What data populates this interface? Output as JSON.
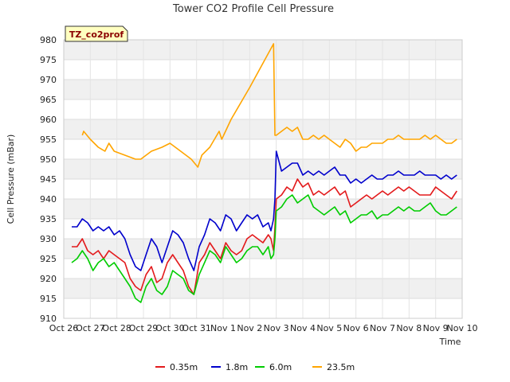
{
  "chart_data": {
    "type": "line",
    "title": "Tower CO2 Profile Cell Pressure",
    "xlabel": "Time",
    "ylabel": "Cell Pressure (mBar)",
    "station_badge": "TZ_co2prof",
    "ylim": [
      910,
      980
    ],
    "yticks": [
      910,
      915,
      920,
      925,
      930,
      935,
      940,
      945,
      950,
      955,
      960,
      965,
      970,
      975,
      980
    ],
    "xlim": [
      0,
      15
    ],
    "xtick_labels": [
      "Oct 26",
      "Oct 27",
      "Oct 28",
      "Oct 29",
      "Oct 30",
      "Oct 31",
      "Nov 1",
      "Nov 2",
      "Nov 3",
      "Nov 4",
      "Nov 5",
      "Nov 6",
      "Nov 7",
      "Nov 8",
      "Nov 9",
      "Nov 10"
    ],
    "x_unit": "days since Oct 26",
    "grid": true,
    "legend_position": "bottom-center",
    "series": [
      {
        "name": "0.35m",
        "color": "#e31a1c",
        "x": [
          0.3,
          0.5,
          0.7,
          0.9,
          1.1,
          1.3,
          1.5,
          1.7,
          1.9,
          2.1,
          2.3,
          2.5,
          2.7,
          2.9,
          3.1,
          3.3,
          3.5,
          3.7,
          3.9,
          4.1,
          4.3,
          4.5,
          4.7,
          4.9,
          5.1,
          5.3,
          5.5,
          5.7,
          5.9,
          6.1,
          6.3,
          6.5,
          6.7,
          6.9,
          7.1,
          7.3,
          7.5,
          7.7,
          7.8,
          7.9,
          7.95,
          8.0,
          8.2,
          8.4,
          8.6,
          8.8,
          9.0,
          9.2,
          9.4,
          9.6,
          9.8,
          10.0,
          10.2,
          10.4,
          10.6,
          10.8,
          11.0,
          11.2,
          11.4,
          11.6,
          11.8,
          12.0,
          12.2,
          12.4,
          12.6,
          12.8,
          13.0,
          13.2,
          13.4,
          13.6,
          13.8,
          14.0,
          14.2,
          14.4,
          14.6,
          14.8
        ],
        "values": [
          928,
          928,
          930,
          927,
          926,
          927,
          925,
          927,
          926,
          925,
          924,
          920,
          918,
          917,
          921,
          923,
          919,
          920,
          924,
          926,
          924,
          922,
          918,
          916,
          924,
          926,
          929,
          927,
          925,
          929,
          927,
          926,
          927,
          930,
          931,
          930,
          929,
          931,
          930,
          927,
          933,
          940,
          941,
          943,
          942,
          945,
          943,
          944,
          941,
          942,
          941,
          942,
          943,
          941,
          942,
          938,
          939,
          940,
          941,
          940,
          941,
          942,
          941,
          942,
          943,
          942,
          943,
          942,
          941,
          941,
          941,
          943,
          942,
          941,
          940,
          942
        ]
      },
      {
        "name": "1.8m",
        "color": "#0000cc",
        "x": [
          0.3,
          0.5,
          0.7,
          0.9,
          1.1,
          1.3,
          1.5,
          1.7,
          1.9,
          2.1,
          2.3,
          2.5,
          2.7,
          2.9,
          3.1,
          3.3,
          3.5,
          3.7,
          3.9,
          4.1,
          4.3,
          4.5,
          4.7,
          4.9,
          5.1,
          5.3,
          5.5,
          5.7,
          5.9,
          6.1,
          6.3,
          6.5,
          6.7,
          6.9,
          7.1,
          7.3,
          7.5,
          7.7,
          7.8,
          7.9,
          7.95,
          8.0,
          8.2,
          8.4,
          8.6,
          8.8,
          9.0,
          9.2,
          9.4,
          9.6,
          9.8,
          10.0,
          10.2,
          10.4,
          10.6,
          10.8,
          11.0,
          11.2,
          11.4,
          11.6,
          11.8,
          12.0,
          12.2,
          12.4,
          12.6,
          12.8,
          13.0,
          13.2,
          13.4,
          13.6,
          13.8,
          14.0,
          14.2,
          14.4,
          14.6,
          14.8
        ],
        "values": [
          933,
          933,
          935,
          934,
          932,
          933,
          932,
          933,
          931,
          932,
          930,
          926,
          923,
          922,
          926,
          930,
          928,
          924,
          928,
          932,
          931,
          929,
          925,
          922,
          928,
          931,
          935,
          934,
          932,
          936,
          935,
          932,
          934,
          936,
          935,
          936,
          933,
          934,
          932,
          935,
          940,
          952,
          947,
          948,
          949,
          949,
          946,
          947,
          946,
          947,
          946,
          947,
          948,
          946,
          946,
          944,
          945,
          944,
          945,
          946,
          945,
          945,
          946,
          946,
          947,
          946,
          946,
          946,
          947,
          946,
          946,
          946,
          945,
          946,
          945,
          946
        ]
      },
      {
        "name": "6.0m",
        "color": "#00cc00",
        "x": [
          0.3,
          0.5,
          0.7,
          0.9,
          1.1,
          1.3,
          1.5,
          1.7,
          1.9,
          2.1,
          2.3,
          2.5,
          2.7,
          2.9,
          3.1,
          3.3,
          3.5,
          3.7,
          3.9,
          4.1,
          4.3,
          4.5,
          4.7,
          4.9,
          5.1,
          5.3,
          5.5,
          5.7,
          5.9,
          6.1,
          6.3,
          6.5,
          6.7,
          6.9,
          7.1,
          7.3,
          7.5,
          7.7,
          7.8,
          7.9,
          7.95,
          8.0,
          8.2,
          8.4,
          8.6,
          8.8,
          9.0,
          9.2,
          9.4,
          9.6,
          9.8,
          10.0,
          10.2,
          10.4,
          10.6,
          10.8,
          11.0,
          11.2,
          11.4,
          11.6,
          11.8,
          12.0,
          12.2,
          12.4,
          12.6,
          12.8,
          13.0,
          13.2,
          13.4,
          13.6,
          13.8,
          14.0,
          14.2,
          14.4,
          14.6,
          14.8
        ],
        "values": [
          924,
          925,
          927,
          925,
          922,
          924,
          925,
          923,
          924,
          922,
          920,
          918,
          915,
          914,
          918,
          920,
          917,
          916,
          918,
          922,
          921,
          920,
          917,
          916,
          921,
          924,
          927,
          926,
          924,
          928,
          926,
          924,
          925,
          927,
          928,
          928,
          926,
          928,
          925,
          926,
          930,
          937,
          938,
          940,
          941,
          939,
          940,
          941,
          938,
          937,
          936,
          937,
          938,
          936,
          937,
          934,
          935,
          936,
          936,
          937,
          935,
          936,
          936,
          937,
          938,
          937,
          938,
          937,
          937,
          938,
          939,
          937,
          936,
          936,
          937,
          938
        ]
      },
      {
        "name": "23.5m",
        "color": "#ffa500",
        "x": [
          0.7,
          0.75,
          1.0,
          1.3,
          1.55,
          1.7,
          1.9,
          2.3,
          2.7,
          2.9,
          3.3,
          3.7,
          4.0,
          4.4,
          4.8,
          5.05,
          5.2,
          5.5,
          5.85,
          5.95,
          6.3,
          7.0,
          7.9,
          7.95,
          8.0,
          8.2,
          8.4,
          8.6,
          8.8,
          9.0,
          9.2,
          9.4,
          9.6,
          9.8,
          10.0,
          10.2,
          10.4,
          10.6,
          10.8,
          11.0,
          11.2,
          11.4,
          11.6,
          11.8,
          12.0,
          12.2,
          12.4,
          12.6,
          12.8,
          13.0,
          13.2,
          13.4,
          13.6,
          13.8,
          14.0,
          14.2,
          14.4,
          14.6,
          14.8
        ],
        "values": [
          956,
          957,
          955,
          953,
          952,
          954,
          952,
          951,
          950,
          950,
          952,
          953,
          954,
          952,
          950,
          948,
          951,
          953,
          957,
          955,
          960,
          968,
          979,
          956,
          956,
          957,
          958,
          957,
          958,
          955,
          955,
          956,
          955,
          956,
          955,
          954,
          953,
          955,
          954,
          952,
          953,
          953,
          954,
          954,
          954,
          955,
          955,
          956,
          955,
          955,
          955,
          955,
          956,
          955,
          956,
          955,
          954,
          954,
          955
        ]
      }
    ]
  }
}
